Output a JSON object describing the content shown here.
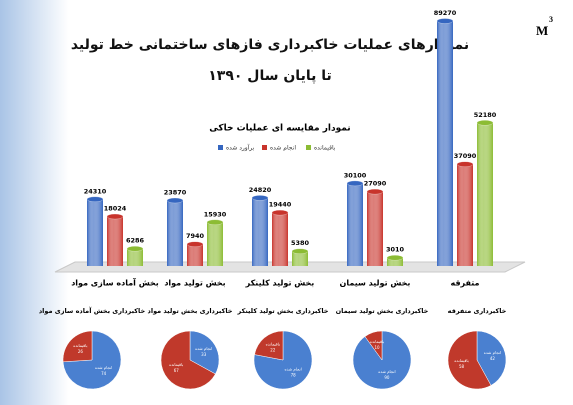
{
  "header": {
    "title": "نمودارهای عملیات خاکبرداری فازهای ساختمانی خط تولید",
    "subtitle": "تا پایان سال ۱۳۹۰",
    "unit": "M",
    "unit_exp": "3"
  },
  "chart_data": [
    {
      "type": "bar",
      "title": "نمودار مقایسه ای عملیات خاکی",
      "categories": [
        "بخش آماده سازی مواد",
        "بخش تولید مواد",
        "بخش تولید کلینکر",
        "بخش تولید سیمان",
        "متفرقه"
      ],
      "series": [
        {
          "name": "برآورد شده",
          "color": "#3566c0",
          "values": [
            24310,
            23870,
            24820,
            30100,
            89270
          ]
        },
        {
          "name": "انجام شده",
          "color": "#c8342c",
          "values": [
            18024,
            7940,
            19440,
            27090,
            37090
          ]
        },
        {
          "name": "باقیمانده",
          "color": "#8cbc34",
          "values": [
            6286,
            15930,
            5380,
            3010,
            52180
          ]
        }
      ]
    },
    {
      "type": "pie",
      "title": "خاکبرداری بخش آماده سازی مواد",
      "categories": [
        "انجام شده",
        "باقیمانده"
      ],
      "values": [
        74,
        26
      ],
      "colors": [
        "#4a80d0",
        "#c0392b"
      ]
    },
    {
      "type": "pie",
      "title": "خاکبرداری بخش تولید مواد",
      "categories": [
        "انجام شده",
        "باقیمانده"
      ],
      "values": [
        33,
        67
      ],
      "colors": [
        "#4a80d0",
        "#c0392b"
      ]
    },
    {
      "type": "pie",
      "title": "خاکبرداری بخش تولید کلینکر",
      "categories": [
        "انجام شده",
        "باقیمانده"
      ],
      "values": [
        78,
        22
      ],
      "colors": [
        "#4a80d0",
        "#c0392b"
      ]
    },
    {
      "type": "pie",
      "title": "خاکبرداری بخش تولید سیمان",
      "categories": [
        "انجام شده",
        "باقیمانده"
      ],
      "values": [
        90,
        10
      ],
      "colors": [
        "#4a80d0",
        "#c0392b"
      ]
    },
    {
      "type": "pie",
      "title": "خاکبرداری متفرقه",
      "categories": [
        "انجام شده",
        "باقیمانده"
      ],
      "values": [
        42,
        58
      ],
      "colors": [
        "#4a80d0",
        "#c0392b"
      ]
    }
  ]
}
